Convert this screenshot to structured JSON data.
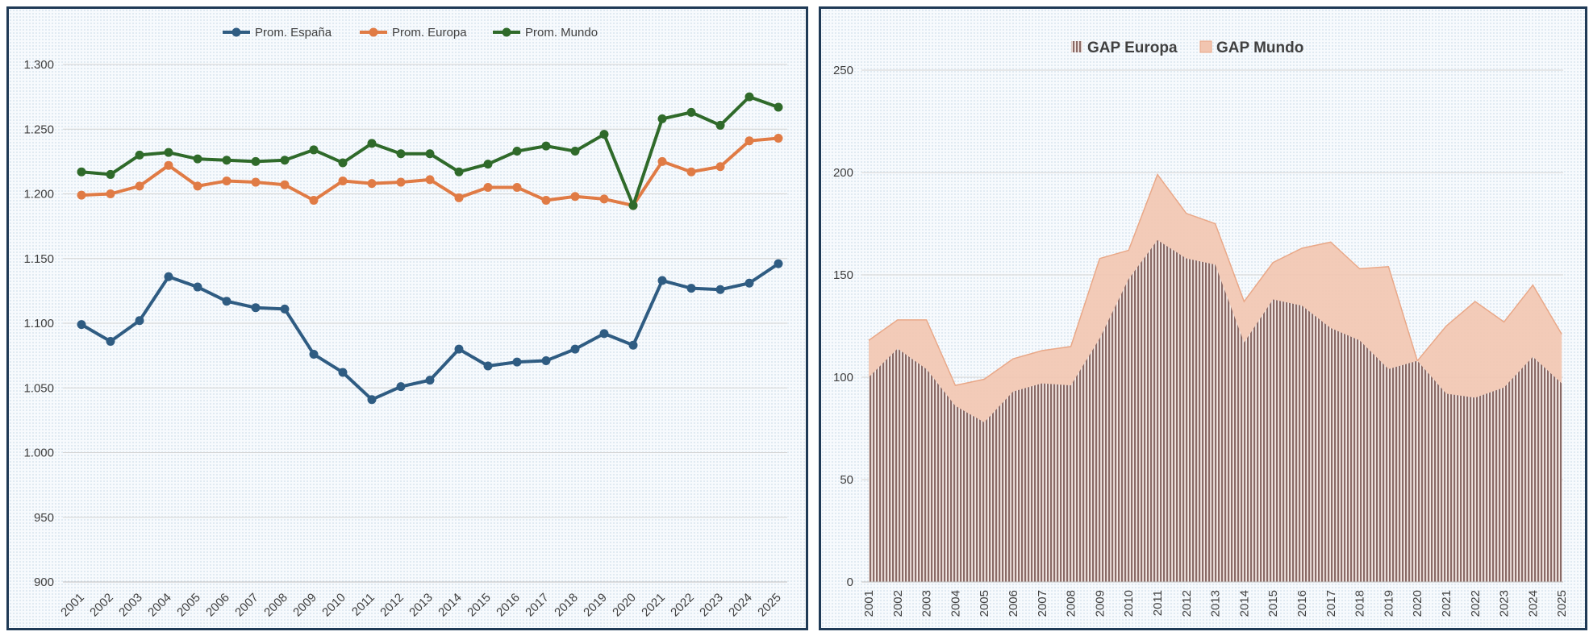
{
  "colors": {
    "espana": "#2f5c82",
    "europa": "#e07b45",
    "mundo": "#2f6a2a",
    "gap_europa": "#8a6a66",
    "gap_mundo": "#f2c5b0",
    "gap_mundo_line": "#e9a888"
  },
  "chart_data": [
    {
      "type": "line",
      "title": "",
      "xlabel": "",
      "ylabel": "",
      "ylim": [
        900,
        1300
      ],
      "yticks": [
        "900",
        "950",
        "1.000",
        "1.050",
        "1.100",
        "1.150",
        "1.200",
        "1.250",
        "1.300"
      ],
      "ytick_values": [
        900,
        950,
        1000,
        1050,
        1100,
        1150,
        1200,
        1250,
        1300
      ],
      "grid": true,
      "legend_position": "top",
      "categories": [
        "2001",
        "2002",
        "2003",
        "2004",
        "2005",
        "2006",
        "2007",
        "2008",
        "2009",
        "2010",
        "2011",
        "2012",
        "2013",
        "2014",
        "2015",
        "2016",
        "2017",
        "2018",
        "2019",
        "2020",
        "2021",
        "2022",
        "2023",
        "2024",
        "2025"
      ],
      "series": [
        {
          "name": "Prom. España",
          "color_key": "espana",
          "values": [
            1099,
            1086,
            1102,
            1136,
            1128,
            1117,
            1112,
            1111,
            1076,
            1062,
            1041,
            1051,
            1056,
            1080,
            1067,
            1070,
            1071,
            1080,
            1092,
            1083,
            1133,
            1127,
            1126,
            1131,
            1146
          ]
        },
        {
          "name": "Prom. Europa",
          "color_key": "europa",
          "values": [
            1199,
            1200,
            1206,
            1222,
            1206,
            1210,
            1209,
            1207,
            1195,
            1210,
            1208,
            1209,
            1211,
            1197,
            1205,
            1205,
            1195,
            1198,
            1196,
            1191,
            1225,
            1217,
            1221,
            1241,
            1243
          ]
        },
        {
          "name": "Prom. Mundo",
          "color_key": "mundo",
          "values": [
            1217,
            1215,
            1230,
            1232,
            1227,
            1226,
            1225,
            1226,
            1234,
            1224,
            1239,
            1231,
            1231,
            1217,
            1223,
            1233,
            1237,
            1233,
            1246,
            1191,
            1258,
            1263,
            1253,
            1275,
            1267
          ]
        }
      ]
    },
    {
      "type": "area",
      "title": "",
      "xlabel": "",
      "ylabel": "",
      "ylim": [
        0,
        250
      ],
      "yticks": [
        "0",
        "50",
        "100",
        "150",
        "200",
        "250"
      ],
      "ytick_values": [
        0,
        50,
        100,
        150,
        200,
        250
      ],
      "grid": true,
      "legend_position": "top",
      "categories": [
        "2001",
        "2002",
        "2003",
        "2004",
        "2005",
        "2006",
        "2007",
        "2008",
        "2009",
        "2010",
        "2011",
        "2012",
        "2013",
        "2014",
        "2015",
        "2016",
        "2017",
        "2018",
        "2019",
        "2020",
        "2021",
        "2022",
        "2023",
        "2024",
        "2025"
      ],
      "series": [
        {
          "name": "GAP Mundo",
          "color_key": "gap_mundo",
          "values": [
            118,
            128,
            128,
            96,
            99,
            109,
            113,
            115,
            158,
            162,
            199,
            180,
            175,
            137,
            156,
            163,
            166,
            153,
            154,
            108,
            125,
            137,
            127,
            145,
            121
          ]
        },
        {
          "name": "GAP Europa",
          "color_key": "gap_europa",
          "values": [
            100,
            114,
            104,
            86,
            78,
            93,
            97,
            96,
            119,
            148,
            167,
            158,
            155,
            117,
            138,
            135,
            124,
            118,
            104,
            108,
            92,
            90,
            95,
            110,
            97
          ]
        }
      ]
    }
  ]
}
